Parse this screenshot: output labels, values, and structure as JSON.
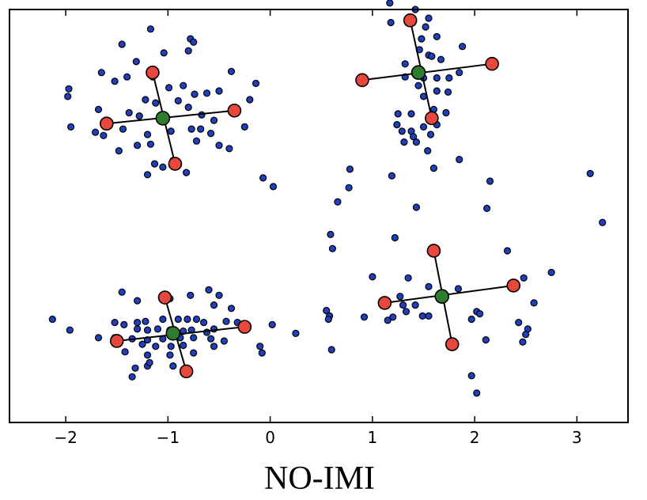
{
  "chart_data": {
    "type": "scatter",
    "title": "NO-IMI",
    "xlabel": "",
    "ylabel": "",
    "xlim": [
      -2.55,
      3.5
    ],
    "ylim": [
      -1.9,
      1.9
    ],
    "x_ticks": [
      -2,
      -1,
      0,
      1,
      2,
      3
    ],
    "x_tick_labels": [
      "−2",
      "−1",
      "0",
      "1",
      "2",
      "3"
    ],
    "grid": false,
    "legend": "none",
    "colors": {
      "points": "#1f3fbf",
      "centroid": "#2e7d2e",
      "cluster_center": "#e8483c",
      "line": "#000000"
    },
    "points": [
      [
        -1.17,
        1.72
      ],
      [
        -1.04,
        1.5
      ],
      [
        -0.8,
        1.52
      ],
      [
        -0.78,
        1.63
      ],
      [
        -0.75,
        1.6
      ],
      [
        -1.45,
        1.58
      ],
      [
        -1.31,
        1.42
      ],
      [
        -1.65,
        1.32
      ],
      [
        -0.38,
        1.33
      ],
      [
        -1.52,
        1.24
      ],
      [
        -1.4,
        1.28
      ],
      [
        -1.97,
        1.17
      ],
      [
        -1.98,
        1.1
      ],
      [
        -1.15,
        1.28
      ],
      [
        -0.99,
        1.18
      ],
      [
        -0.85,
        1.2
      ],
      [
        -0.74,
        1.12
      ],
      [
        -0.62,
        1.13
      ],
      [
        -0.5,
        1.15
      ],
      [
        -0.14,
        1.22
      ],
      [
        -1.22,
        1.07
      ],
      [
        -1.12,
        1.04
      ],
      [
        -0.9,
        1.06
      ],
      [
        -0.8,
        1.0
      ],
      [
        -0.2,
        1.07
      ],
      [
        -1.68,
        0.98
      ],
      [
        -1.38,
        0.95
      ],
      [
        -1.28,
        0.92
      ],
      [
        -1.05,
        0.92
      ],
      [
        -0.67,
        0.93
      ],
      [
        -0.55,
        0.88
      ],
      [
        -1.95,
        0.82
      ],
      [
        -1.71,
        0.77
      ],
      [
        -1.63,
        0.74
      ],
      [
        -1.44,
        0.8
      ],
      [
        -1.2,
        0.75
      ],
      [
        -0.97,
        0.78
      ],
      [
        -0.77,
        0.8
      ],
      [
        -0.68,
        0.8
      ],
      [
        -0.58,
        0.76
      ],
      [
        -0.25,
        0.82
      ],
      [
        -1.3,
        0.65
      ],
      [
        -1.17,
        0.66
      ],
      [
        -0.72,
        0.69
      ],
      [
        -0.5,
        0.65
      ],
      [
        -0.4,
        0.62
      ],
      [
        -1.48,
        0.6
      ],
      [
        -1.13,
        0.48
      ],
      [
        -0.95,
        0.51
      ],
      [
        -1.2,
        0.38
      ],
      [
        -0.82,
        0.4
      ],
      [
        -0.07,
        0.35
      ],
      [
        0.03,
        0.27
      ],
      [
        -1.05,
        0.45
      ],
      [
        1.17,
        1.96
      ],
      [
        1.42,
        1.9
      ],
      [
        1.55,
        1.82
      ],
      [
        1.18,
        1.78
      ],
      [
        1.52,
        1.74
      ],
      [
        1.63,
        1.65
      ],
      [
        1.48,
        1.63
      ],
      [
        1.46,
        1.53
      ],
      [
        1.55,
        1.48
      ],
      [
        1.58,
        1.47
      ],
      [
        1.67,
        1.44
      ],
      [
        1.88,
        1.56
      ],
      [
        1.32,
        1.4
      ],
      [
        1.45,
        1.34
      ],
      [
        1.32,
        1.28
      ],
      [
        1.5,
        1.27
      ],
      [
        1.63,
        1.27
      ],
      [
        1.75,
        1.27
      ],
      [
        1.85,
        1.32
      ],
      [
        1.45,
        1.2
      ],
      [
        1.63,
        1.15
      ],
      [
        1.5,
        1.1
      ],
      [
        1.74,
        1.14
      ],
      [
        1.6,
        0.98
      ],
      [
        1.72,
        0.95
      ],
      [
        1.25,
        0.94
      ],
      [
        1.38,
        0.94
      ],
      [
        1.63,
        0.84
      ],
      [
        1.24,
        0.84
      ],
      [
        1.5,
        0.82
      ],
      [
        1.38,
        0.78
      ],
      [
        1.29,
        0.78
      ],
      [
        1.57,
        0.75
      ],
      [
        1.4,
        0.73
      ],
      [
        1.31,
        0.68
      ],
      [
        1.43,
        0.68
      ],
      [
        1.54,
        0.6
      ],
      [
        1.85,
        0.52
      ],
      [
        1.6,
        0.44
      ],
      [
        0.78,
        0.43
      ],
      [
        1.19,
        0.37
      ],
      [
        2.15,
        0.32
      ],
      [
        3.13,
        0.39
      ],
      [
        0.77,
        0.26
      ],
      [
        0.66,
        0.13
      ],
      [
        1.43,
        0.08
      ],
      [
        2.12,
        0.07
      ],
      [
        3.25,
        -0.06
      ],
      [
        0.59,
        -0.17
      ],
      [
        1.22,
        -0.2
      ],
      [
        0.61,
        -0.3
      ],
      [
        2.32,
        -0.32
      ],
      [
        2.75,
        -0.52
      ],
      [
        1.0,
        -0.56
      ],
      [
        1.35,
        -0.57
      ],
      [
        2.48,
        -0.57
      ],
      [
        1.55,
        -0.65
      ],
      [
        1.84,
        -0.67
      ],
      [
        1.27,
        -0.74
      ],
      [
        1.3,
        -0.82
      ],
      [
        1.42,
        -0.82
      ],
      [
        1.33,
        -0.88
      ],
      [
        1.55,
        -0.92
      ],
      [
        2.58,
        -0.8
      ],
      [
        0.55,
        -0.87
      ],
      [
        0.58,
        -0.92
      ],
      [
        0.92,
        -0.93
      ],
      [
        1.2,
        -0.93
      ],
      [
        1.49,
        -0.92
      ],
      [
        2.02,
        -0.88
      ],
      [
        2.05,
        -0.9
      ],
      [
        1.97,
        -0.95
      ],
      [
        2.43,
        -0.98
      ],
      [
        0.57,
        -0.95
      ],
      [
        1.15,
        -0.96
      ],
      [
        2.52,
        -1.04
      ],
      [
        2.5,
        -1.09
      ],
      [
        2.47,
        -1.16
      ],
      [
        2.11,
        -1.14
      ],
      [
        0.6,
        -1.23
      ],
      [
        1.97,
        -1.47
      ],
      [
        2.02,
        -1.63
      ],
      [
        -2.13,
        -0.95
      ],
      [
        -1.96,
        -1.05
      ],
      [
        -1.45,
        -0.7
      ],
      [
        -1.3,
        -0.78
      ],
      [
        -0.98,
        -0.76
      ],
      [
        -0.78,
        -0.73
      ],
      [
        -0.6,
        -0.68
      ],
      [
        -0.5,
        -0.73
      ],
      [
        -0.55,
        -0.82
      ],
      [
        -0.38,
        -0.85
      ],
      [
        -1.52,
        -0.98
      ],
      [
        -1.43,
        -1.0
      ],
      [
        -1.3,
        -0.98
      ],
      [
        -1.22,
        -0.97
      ],
      [
        -1.05,
        -0.95
      ],
      [
        -0.9,
        -0.95
      ],
      [
        -0.81,
        -0.95
      ],
      [
        -0.72,
        -0.95
      ],
      [
        -0.65,
        -0.98
      ],
      [
        -0.43,
        -0.97
      ],
      [
        -0.32,
        -0.98
      ],
      [
        -1.3,
        -1.04
      ],
      [
        -1.2,
        -1.05
      ],
      [
        -1.1,
        -1.04
      ],
      [
        -0.98,
        -1.05
      ],
      [
        -0.85,
        -1.06
      ],
      [
        -0.77,
        -1.05
      ],
      [
        -0.62,
        -1.07
      ],
      [
        -0.55,
        -1.04
      ],
      [
        0.02,
        -1.0
      ],
      [
        -1.68,
        -1.12
      ],
      [
        -1.52,
        -1.12
      ],
      [
        -1.35,
        -1.13
      ],
      [
        -1.2,
        -1.14
      ],
      [
        -1.05,
        -1.13
      ],
      [
        -0.88,
        -1.12
      ],
      [
        -0.75,
        -1.12
      ],
      [
        -0.58,
        -1.13
      ],
      [
        -0.45,
        -1.15
      ],
      [
        0.25,
        -1.08
      ],
      [
        -1.25,
        -1.18
      ],
      [
        -1.12,
        -1.2
      ],
      [
        -0.97,
        -1.2
      ],
      [
        -0.85,
        -1.19
      ],
      [
        -0.55,
        -1.2
      ],
      [
        -0.1,
        -1.2
      ],
      [
        -0.08,
        -1.26
      ],
      [
        -1.42,
        -1.25
      ],
      [
        -1.2,
        -1.28
      ],
      [
        -0.98,
        -1.28
      ],
      [
        -0.75,
        -1.26
      ],
      [
        -1.32,
        -1.4
      ],
      [
        -1.2,
        -1.38
      ],
      [
        -1.35,
        -1.48
      ],
      [
        -1.18,
        -1.35
      ],
      [
        -0.95,
        -1.38
      ]
    ],
    "quantizers": [
      {
        "centroid": [
          -1.05,
          0.9
        ],
        "centers": [
          [
            -1.6,
            0.85
          ],
          [
            -0.35,
            0.97
          ],
          [
            -1.15,
            1.32
          ],
          [
            -0.93,
            0.48
          ]
        ]
      },
      {
        "centroid": [
          1.45,
          1.32
        ],
        "centers": [
          [
            0.9,
            1.25
          ],
          [
            2.17,
            1.4
          ],
          [
            1.37,
            1.8
          ],
          [
            1.58,
            0.9
          ]
        ]
      },
      {
        "centroid": [
          1.68,
          -0.74
        ],
        "centers": [
          [
            1.12,
            -0.8
          ],
          [
            2.38,
            -0.64
          ],
          [
            1.6,
            -0.32
          ],
          [
            1.78,
            -1.18
          ]
        ]
      },
      {
        "centroid": [
          -0.95,
          -1.08
        ],
        "centers": [
          [
            -1.5,
            -1.15
          ],
          [
            -0.25,
            -1.02
          ],
          [
            -1.03,
            -0.75
          ],
          [
            -0.82,
            -1.43
          ]
        ]
      }
    ]
  }
}
